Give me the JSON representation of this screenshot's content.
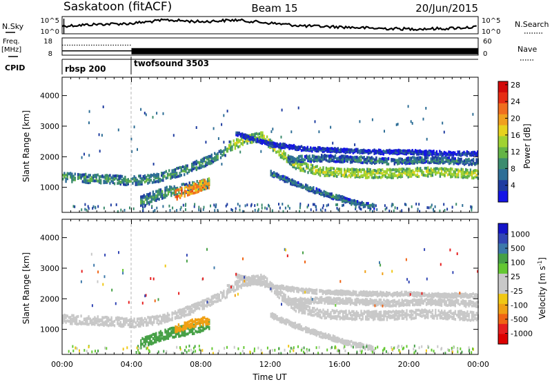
{
  "header": {
    "station": "Saskatoon (fitACF)",
    "beam": "Beam 15",
    "date": "20/Jun/2015"
  },
  "colors": {
    "power_scale": [
      "#1414e6",
      "#1e3ca0",
      "#2e6e96",
      "#3c8c6e",
      "#64b446",
      "#a0d232",
      "#e6d21e",
      "#f0a01e",
      "#f06e1e",
      "#e62d14",
      "#d20a0a"
    ],
    "velocity_scale": [
      "#1414c8",
      "#3246b4",
      "#3c78aa",
      "#46a046",
      "#64c832",
      "#c8c8c8",
      "#c8c8c8",
      "#f0c814",
      "#f0a014",
      "#f06414",
      "#e61e1e",
      "#dc0000"
    ],
    "line": "#000000",
    "divider": "#b4b4b4"
  },
  "chart_data": [
    {
      "type": "line",
      "panel": "noise",
      "left_label": "N.Sky",
      "right_label": "N.Search",
      "left_ticks": [
        "10^5",
        "10^0"
      ],
      "right_ticks": [
        "10^5",
        "10^0"
      ],
      "x": [
        "00:00",
        "02:00",
        "04:00",
        "06:00",
        "08:00",
        "10:00",
        "12:00",
        "14:00",
        "16:00",
        "18:00",
        "20:00",
        "22:00",
        "24:00"
      ],
      "y_fraction": [
        0.45,
        0.55,
        0.6,
        0.8,
        0.7,
        0.8,
        0.62,
        0.45,
        0.4,
        0.32,
        0.28,
        0.3,
        0.4
      ]
    },
    {
      "type": "line",
      "panel": "frequency",
      "left_label": "Freq.",
      "left_unit": "[MHz]",
      "left_ticks": [
        "18",
        "8"
      ],
      "right_label": "Nave",
      "right_ticks": [
        "60",
        "0"
      ],
      "segments": [
        {
          "from": "00:00",
          "to": "04:00",
          "freq_mhz": 10.5,
          "nave": 35
        },
        {
          "from": "04:00",
          "to": "24:00",
          "freq_mhz": 10.5,
          "nave": 60
        }
      ]
    },
    {
      "type": "table",
      "panel": "cpid",
      "label": "CPID",
      "programs": [
        {
          "from": "00:00",
          "to": "04:00",
          "name": "rbsp 200"
        },
        {
          "from": "04:00",
          "to": "24:00",
          "name": "twofsound 3503"
        }
      ]
    },
    {
      "type": "heatmap",
      "panel": "power",
      "ylabel": "Slant Range [km]",
      "yticks": [
        1000,
        2000,
        3000,
        4000
      ],
      "ylim": [
        180,
        4600
      ],
      "xlim": [
        0,
        24
      ],
      "colorbar_label": "Power [dB]",
      "colorbar_ticks": [
        "4",
        "8",
        "12",
        "16",
        "20",
        "24",
        "28"
      ],
      "bands": [
        {
          "x": [
            0,
            1.5,
            3,
            4,
            5.5,
            7,
            8.5,
            9.5
          ],
          "y": [
            1380,
            1330,
            1300,
            1250,
            1350,
            1600,
            1950,
            2250
          ],
          "width_km": 300,
          "level": 12
        },
        {
          "x": [
            9.5,
            10.5,
            11.5,
            12.5,
            13.5,
            15,
            17,
            19,
            21,
            23,
            24
          ],
          "y": [
            2350,
            2600,
            2700,
            2200,
            1750,
            1550,
            1500,
            1500,
            1550,
            1500,
            1450
          ],
          "width_km": 300,
          "level": 18
        },
        {
          "x": [
            4.5,
            6,
            7.5,
            8.5
          ],
          "y": [
            600,
            900,
            1050,
            1200
          ],
          "width_km": 350,
          "level": 12
        },
        {
          "x": [
            6.5,
            7.5,
            8.5
          ],
          "y": [
            800,
            1000,
            1200
          ],
          "width_km": 350,
          "level": 26
        },
        {
          "x": [
            12,
            13.5,
            15,
            16.5,
            18
          ],
          "y": [
            1500,
            1150,
            850,
            600,
            400
          ],
          "width_km": 150,
          "level": 10
        },
        {
          "x": [
            13,
            15,
            17,
            19,
            21,
            23,
            24
          ],
          "y": [
            1950,
            2000,
            1950,
            1900,
            1950,
            1900,
            1850
          ],
          "width_km": 200,
          "level": 10
        },
        {
          "x": [
            10,
            12,
            14,
            16,
            18,
            20,
            22,
            24
          ],
          "y": [
            2800,
            2450,
            2300,
            2250,
            2200,
            2200,
            2150,
            2150
          ],
          "width_km": 120,
          "level": 6
        }
      ]
    },
    {
      "type": "heatmap",
      "panel": "velocity",
      "ylabel": "Slant Range [km]",
      "yticks": [
        1000,
        2000,
        3000,
        4000
      ],
      "ylim": [
        180,
        4600
      ],
      "xlim": [
        0,
        24
      ],
      "xticks": [
        "00:00",
        "04:00",
        "08:00",
        "12:00",
        "16:00",
        "20:00",
        "00:00"
      ],
      "xlabel": "Time UT",
      "colorbar_label": "Velocity [m s^-1]",
      "colorbar_ticks": [
        "1000",
        "500",
        "100",
        "25",
        "-25",
        "-100",
        "-500",
        "-1000"
      ],
      "bands": [
        {
          "x": [
            0,
            1.5,
            3,
            4,
            5.5,
            7,
            8.5,
            9.5
          ],
          "y": [
            1380,
            1330,
            1300,
            1250,
            1350,
            1600,
            1950,
            2250
          ],
          "width_km": 300,
          "level": 0
        },
        {
          "x": [
            9.5,
            10.5,
            11.5,
            12.5,
            13.5,
            15,
            17,
            19,
            21,
            23,
            24
          ],
          "y": [
            2350,
            2600,
            2700,
            2200,
            1750,
            1550,
            1500,
            1500,
            1550,
            1500,
            1450
          ],
          "width_km": 300,
          "level": 0
        },
        {
          "x": [
            4.5,
            6,
            7.5,
            8.5
          ],
          "y": [
            600,
            900,
            1050,
            1200
          ],
          "width_km": 350,
          "level": 150
        },
        {
          "x": [
            6.5,
            7.5,
            8.5
          ],
          "y": [
            1050,
            1250,
            1350
          ],
          "width_km": 250,
          "level": -150
        },
        {
          "x": [
            12,
            13.5,
            15,
            16.5,
            18
          ],
          "y": [
            1500,
            1150,
            850,
            600,
            400
          ],
          "width_km": 150,
          "level": 0
        },
        {
          "x": [
            13,
            15,
            17,
            19,
            21,
            23,
            24
          ],
          "y": [
            1950,
            2000,
            1950,
            1900,
            1950,
            1900,
            1850
          ],
          "width_km": 200,
          "level": 0
        },
        {
          "x": [
            10,
            12,
            14,
            16,
            18,
            20,
            22,
            24
          ],
          "y": [
            2800,
            2450,
            2300,
            2250,
            2200,
            2200,
            2150,
            2150
          ],
          "width_km": 120,
          "level": 0
        }
      ]
    }
  ]
}
